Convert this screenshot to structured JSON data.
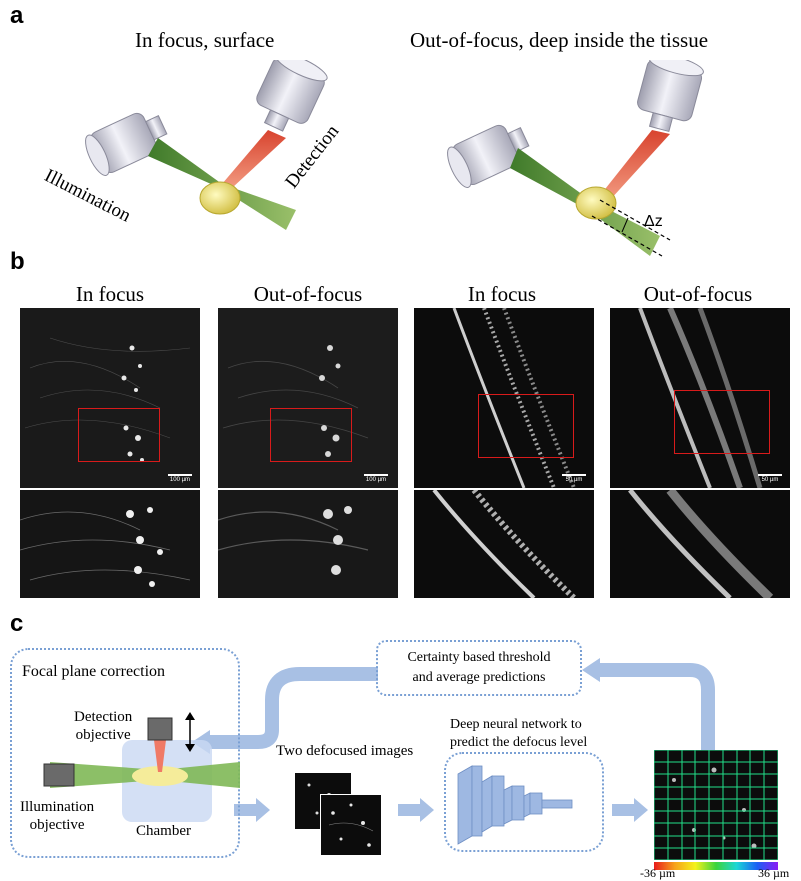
{
  "panel_a": {
    "letter": "a",
    "left_title": "In focus, surface",
    "right_title": "Out-of-focus, deep inside the tissue",
    "illumination_label": "Illumination",
    "detection_label": "Detection",
    "delta_label": "Δz"
  },
  "panel_b": {
    "letter": "b",
    "titles": [
      "In focus",
      "Out-of-focus",
      "In focus",
      "Out-of-focus"
    ],
    "scalebars": [
      "100 µm",
      "100 µm",
      "50 µm",
      "50 µm"
    ]
  },
  "panel_c": {
    "letter": "c",
    "focal_plane_title": "Focal plane correction",
    "detection_objective": "Detection\nobjective",
    "illumination_objective": "Illumination\nobjective",
    "chamber": "Chamber",
    "two_images": "Two defocused images",
    "dnn_label": "Deep neural network to\npredict the defocus level",
    "threshold_label": "Certainty based threshold\nand average predictions",
    "colorbar_min": "-36 µm",
    "colorbar_max": "36 µm"
  },
  "colors": {
    "illumination_beam": "#6a9a3a",
    "detection_beam": "#e0523c",
    "arrow_blue": "#a8c0e4",
    "dotted_border": "#7aa0d4",
    "grid_green": "#22e08a"
  }
}
